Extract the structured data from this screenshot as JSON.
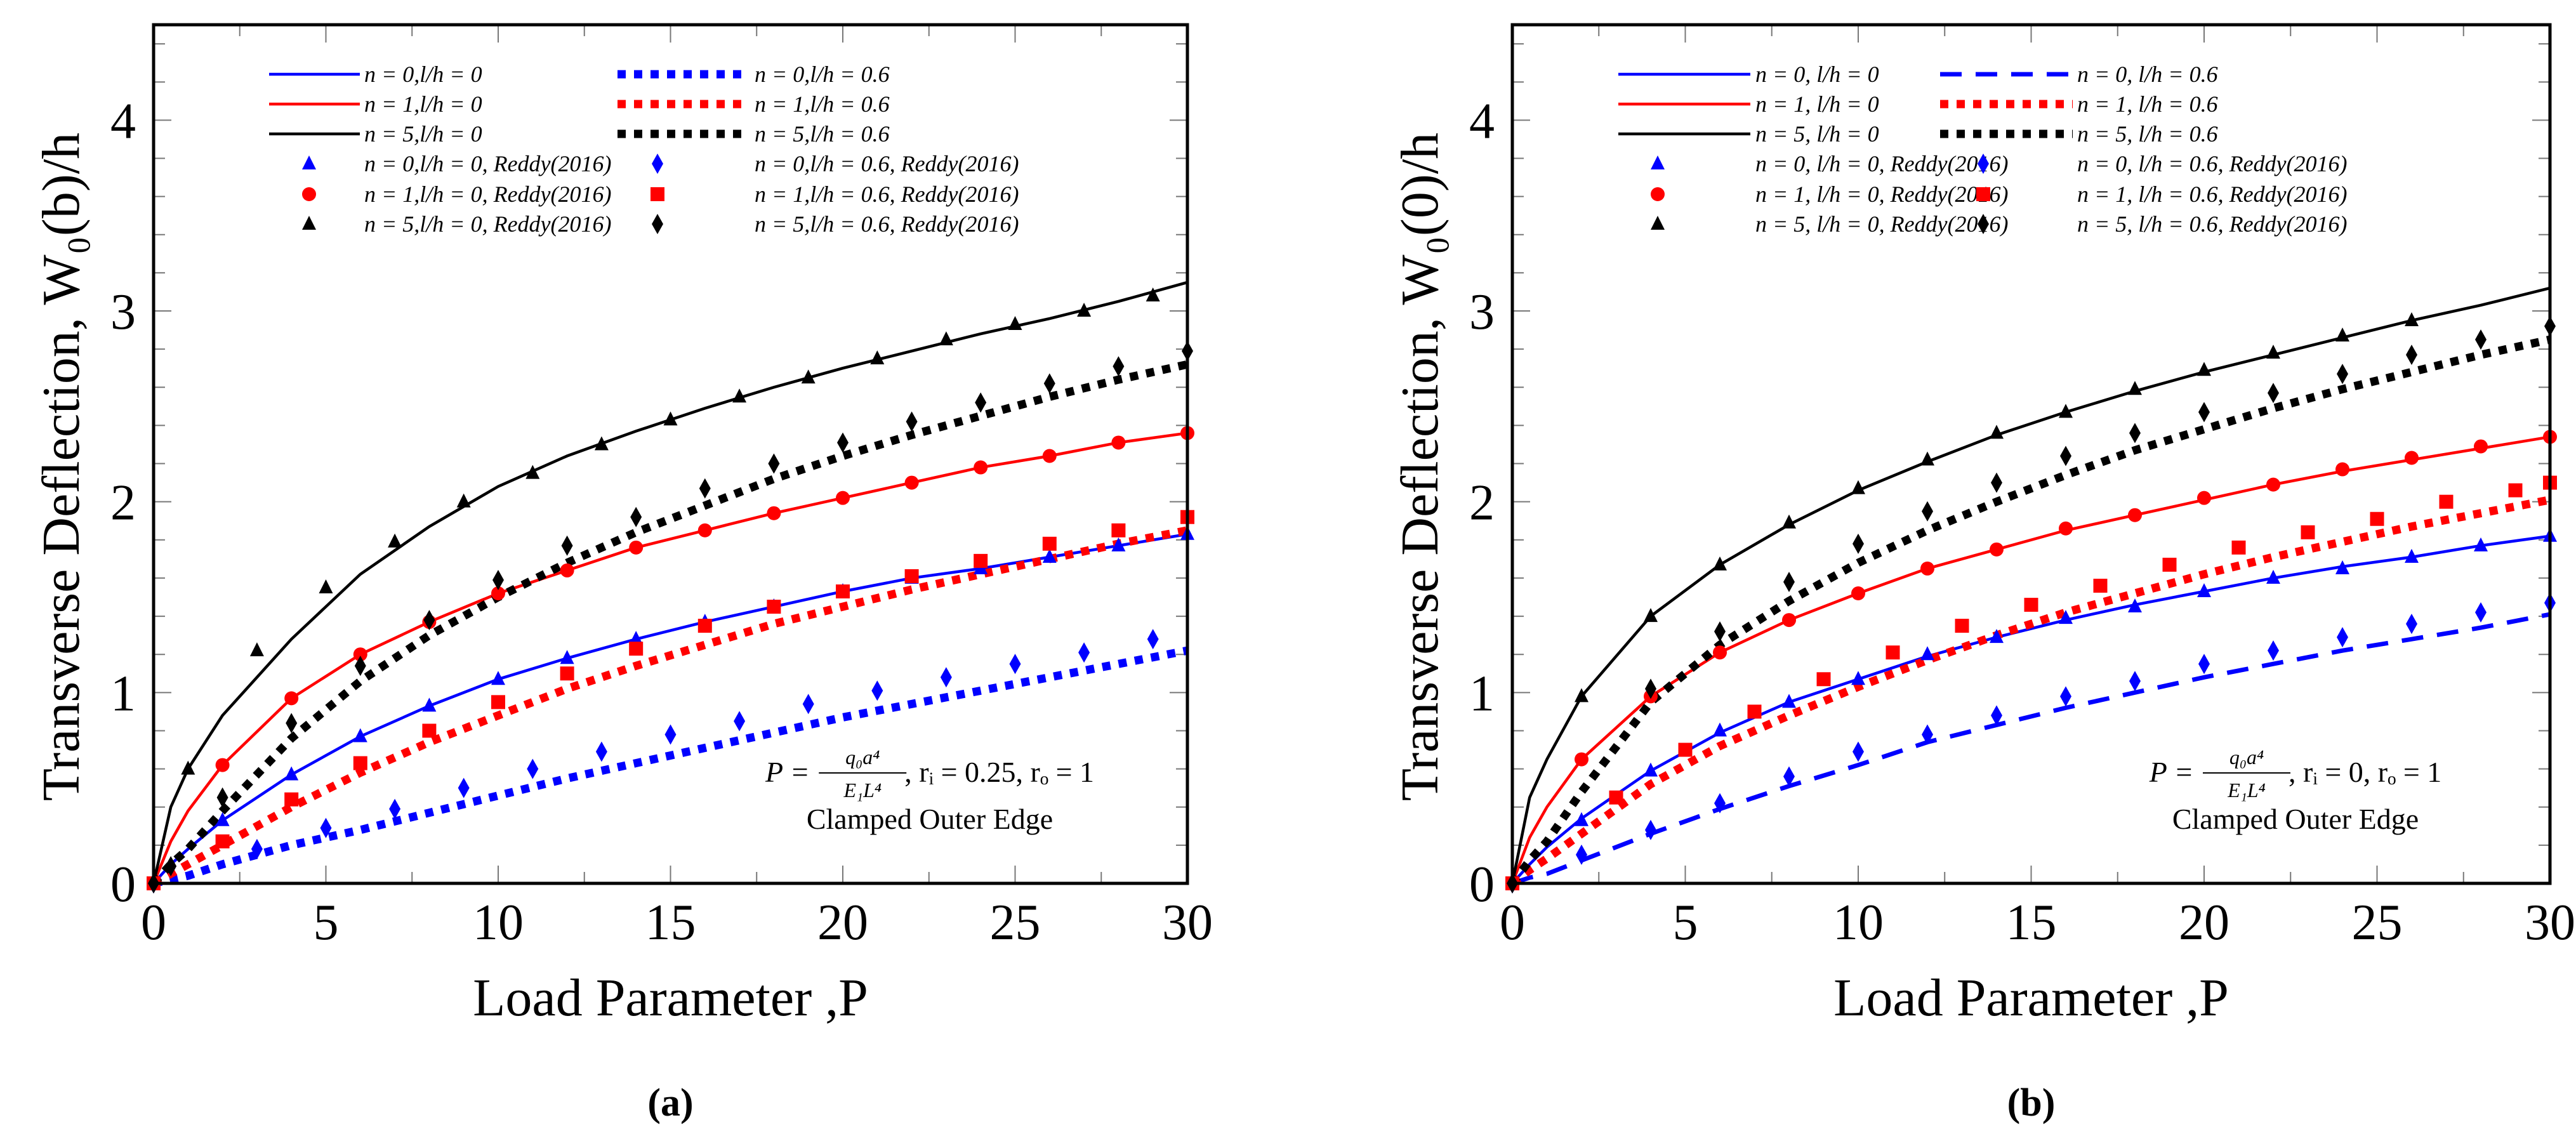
{
  "chart_data": [
    {
      "type": "line",
      "panel": "a",
      "caption": "(a)",
      "xlabel": "Load Parameter ,P",
      "ylabel": "Transverse Deflection, W₀(b)/h",
      "xlim": [
        0,
        30
      ],
      "ylim": [
        0,
        4.5
      ],
      "xticks": [
        0,
        5,
        10,
        15,
        20,
        25,
        30
      ],
      "yticks": [
        0,
        1,
        2,
        3,
        4
      ],
      "grid": false,
      "legend_placement": "top",
      "annotation": {
        "lhs": "P =",
        "numerator": "q₀a⁴",
        "denominator": "E₁L⁴",
        "rest": ", rᵢ = 0.25, rₒ = 1",
        "line2": "Clamped Outer Edge"
      },
      "line_x": [
        0,
        0.5,
        1,
        2,
        4,
        6,
        8,
        10,
        12,
        14,
        16,
        18,
        20,
        22,
        24,
        26,
        28,
        30
      ],
      "lines": [
        {
          "name": "n = 0,l/h = 0",
          "color": "#0000ff",
          "style": "solid",
          "y": [
            0,
            0.1,
            0.18,
            0.33,
            0.57,
            0.77,
            0.93,
            1.07,
            1.18,
            1.28,
            1.37,
            1.45,
            1.53,
            1.6,
            1.65,
            1.71,
            1.77,
            1.83
          ]
        },
        {
          "name": "n = 1,l/h = 0",
          "color": "#ff0000",
          "style": "solid",
          "y": [
            0,
            0.22,
            0.38,
            0.62,
            0.97,
            1.2,
            1.37,
            1.52,
            1.64,
            1.76,
            1.85,
            1.94,
            2.02,
            2.1,
            2.18,
            2.24,
            2.31,
            2.36
          ]
        },
        {
          "name": "n = 5,l/h = 0",
          "color": "#000000",
          "style": "solid",
          "y": [
            0,
            0.4,
            0.6,
            0.88,
            1.28,
            1.62,
            1.87,
            2.08,
            2.24,
            2.37,
            2.49,
            2.6,
            2.7,
            2.79,
            2.88,
            2.96,
            3.05,
            3.15
          ]
        },
        {
          "name": "n = 0,l/h = 0.6",
          "color": "#0000ff",
          "style": "dotted",
          "y": [
            0,
            0.02,
            0.04,
            0.1,
            0.2,
            0.28,
            0.37,
            0.46,
            0.55,
            0.63,
            0.71,
            0.79,
            0.87,
            0.94,
            1.01,
            1.08,
            1.15,
            1.22
          ]
        },
        {
          "name": "n = 1,l/h = 0.6",
          "color": "#ff0000",
          "style": "dotted",
          "y": [
            0,
            0.05,
            0.1,
            0.2,
            0.4,
            0.58,
            0.74,
            0.88,
            1.02,
            1.14,
            1.25,
            1.36,
            1.45,
            1.54,
            1.62,
            1.7,
            1.78,
            1.85
          ]
        },
        {
          "name": "n = 5,l/h = 0.6",
          "color": "#000000",
          "style": "dotted",
          "y": [
            0,
            0.1,
            0.18,
            0.38,
            0.76,
            1.06,
            1.3,
            1.5,
            1.68,
            1.84,
            1.98,
            2.12,
            2.24,
            2.35,
            2.45,
            2.55,
            2.64,
            2.72
          ]
        }
      ],
      "markers": [
        {
          "name": "n = 0,l/h = 0, Reddy(2016)",
          "color": "#0000ff",
          "shape": "triangle",
          "x": [
            0,
            2,
            4,
            6,
            8,
            10,
            12,
            14,
            16,
            18,
            20,
            22,
            24,
            26,
            28,
            30
          ],
          "y": [
            0,
            0.33,
            0.57,
            0.77,
            0.93,
            1.07,
            1.18,
            1.28,
            1.37,
            1.45,
            1.53,
            1.6,
            1.65,
            1.71,
            1.77,
            1.83
          ]
        },
        {
          "name": "n = 1,l/h = 0, Reddy(2016)",
          "color": "#ff0000",
          "shape": "circle",
          "x": [
            0,
            2,
            4,
            6,
            8,
            10,
            12,
            14,
            16,
            18,
            20,
            22,
            24,
            26,
            28,
            30
          ],
          "y": [
            0,
            0.62,
            0.97,
            1.2,
            1.37,
            1.52,
            1.64,
            1.76,
            1.85,
            1.94,
            2.02,
            2.1,
            2.18,
            2.24,
            2.31,
            2.36
          ]
        },
        {
          "name": "n = 5,l/h = 0, Reddy(2016)",
          "color": "#000000",
          "shape": "triangle",
          "x": [
            0,
            1,
            3,
            5,
            7,
            9,
            11,
            13,
            15,
            17,
            19,
            21,
            23,
            25,
            27,
            29
          ],
          "y": [
            0,
            0.6,
            1.22,
            1.55,
            1.79,
            2.0,
            2.15,
            2.3,
            2.43,
            2.55,
            2.65,
            2.75,
            2.85,
            2.93,
            3.0,
            3.08
          ]
        },
        {
          "name": "n = 0,l/h = 0.6, Reddy(2016)",
          "color": "#0000ff",
          "shape": "diamond",
          "x": [
            0,
            3,
            5,
            7,
            9,
            11,
            13,
            15,
            17,
            19,
            21,
            23,
            25,
            27,
            29
          ],
          "y": [
            0,
            0.18,
            0.29,
            0.39,
            0.5,
            0.6,
            0.69,
            0.78,
            0.85,
            0.94,
            1.01,
            1.08,
            1.15,
            1.21,
            1.28
          ]
        },
        {
          "name": "n = 1,l/h = 0.6, Reddy(2016)",
          "color": "#ff0000",
          "shape": "square",
          "x": [
            0,
            2,
            4,
            6,
            8,
            10,
            12,
            14,
            16,
            18,
            20,
            22,
            24,
            26,
            28,
            30
          ],
          "y": [
            0,
            0.22,
            0.44,
            0.63,
            0.8,
            0.95,
            1.1,
            1.23,
            1.35,
            1.45,
            1.53,
            1.61,
            1.69,
            1.78,
            1.85,
            1.92
          ]
        },
        {
          "name": "n = 5,l/h = 0.6, Reddy(2016)",
          "color": "#000000",
          "shape": "diamond",
          "x": [
            0,
            0.5,
            2,
            4,
            6,
            8,
            10,
            12,
            14,
            16,
            18,
            20,
            22,
            24,
            26,
            28,
            30
          ],
          "y": [
            0,
            0.09,
            0.45,
            0.84,
            1.14,
            1.38,
            1.59,
            1.77,
            1.92,
            2.07,
            2.2,
            2.31,
            2.42,
            2.52,
            2.62,
            2.71,
            2.79
          ]
        }
      ]
    },
    {
      "type": "line",
      "panel": "b",
      "caption": "(b)",
      "xlabel": "Load Parameter ,P",
      "ylabel": "Transverse Deflection, W₀(0)/h",
      "xlim": [
        0,
        30
      ],
      "ylim": [
        0,
        4.5
      ],
      "xticks": [
        0,
        5,
        10,
        15,
        20,
        25,
        30
      ],
      "yticks": [
        0,
        1,
        2,
        3,
        4
      ],
      "grid": false,
      "legend_placement": "top",
      "annotation": {
        "lhs": "P =",
        "numerator": "q₀a⁴",
        "denominator": "E₁L⁴",
        "rest": ", rᵢ = 0, rₒ = 1",
        "line2": "Clamped Outer Edge"
      },
      "line_x": [
        0,
        0.5,
        1,
        2,
        4,
        6,
        8,
        10,
        12,
        14,
        16,
        18,
        20,
        22,
        24,
        26,
        28,
        30
      ],
      "lines": [
        {
          "name": "n = 0, l/h = 0",
          "color": "#0000ff",
          "style": "solid",
          "y": [
            0,
            0.1,
            0.19,
            0.34,
            0.59,
            0.79,
            0.95,
            1.07,
            1.19,
            1.29,
            1.38,
            1.46,
            1.53,
            1.6,
            1.66,
            1.71,
            1.77,
            1.82
          ]
        },
        {
          "name": "n = 1, l/h = 0",
          "color": "#ff0000",
          "style": "solid",
          "y": [
            0,
            0.24,
            0.4,
            0.65,
            0.98,
            1.21,
            1.38,
            1.52,
            1.65,
            1.75,
            1.85,
            1.93,
            2.01,
            2.09,
            2.16,
            2.22,
            2.28,
            2.34
          ]
        },
        {
          "name": "n = 5, l/h = 0",
          "color": "#000000",
          "style": "solid",
          "y": [
            0,
            0.45,
            0.65,
            0.98,
            1.4,
            1.67,
            1.88,
            2.06,
            2.21,
            2.35,
            2.47,
            2.58,
            2.68,
            2.77,
            2.86,
            2.95,
            3.03,
            3.12
          ]
        },
        {
          "name": "n = 0, l/h = 0.6",
          "color": "#0000ff",
          "style": "dashed",
          "y": [
            0,
            0.03,
            0.05,
            0.12,
            0.26,
            0.39,
            0.51,
            0.62,
            0.74,
            0.83,
            0.92,
            1.0,
            1.08,
            1.15,
            1.22,
            1.28,
            1.34,
            1.41
          ]
        },
        {
          "name": "n = 1, l/h = 0.6",
          "color": "#ff0000",
          "style": "dotted",
          "y": [
            0,
            0.07,
            0.13,
            0.26,
            0.52,
            0.72,
            0.88,
            1.03,
            1.17,
            1.3,
            1.42,
            1.52,
            1.62,
            1.71,
            1.79,
            1.87,
            1.94,
            2.01
          ]
        },
        {
          "name": "n = 5, l/h = 0.6",
          "color": "#000000",
          "style": "dotted",
          "y": [
            0,
            0.12,
            0.22,
            0.48,
            0.95,
            1.25,
            1.48,
            1.68,
            1.85,
            2.0,
            2.14,
            2.27,
            2.38,
            2.49,
            2.59,
            2.68,
            2.77,
            2.85
          ]
        }
      ],
      "markers": [
        {
          "name": "n = 0, l/h = 0, Reddy(2016)",
          "color": "#0000ff",
          "shape": "triangle",
          "x": [
            0,
            2,
            4,
            6,
            8,
            10,
            12,
            14,
            16,
            18,
            20,
            22,
            24,
            26,
            28,
            30
          ],
          "y": [
            0,
            0.33,
            0.59,
            0.8,
            0.95,
            1.07,
            1.2,
            1.29,
            1.39,
            1.45,
            1.53,
            1.6,
            1.65,
            1.71,
            1.77,
            1.82
          ]
        },
        {
          "name": "n = 1, l/h = 0, Reddy(2016)",
          "color": "#ff0000",
          "shape": "circle",
          "x": [
            0,
            2,
            4,
            6,
            8,
            10,
            12,
            14,
            16,
            18,
            20,
            22,
            24,
            26,
            28,
            30
          ],
          "y": [
            0,
            0.65,
            0.98,
            1.21,
            1.38,
            1.52,
            1.65,
            1.75,
            1.86,
            1.93,
            2.02,
            2.09,
            2.17,
            2.23,
            2.29,
            2.34
          ]
        },
        {
          "name": "n = 5, l/h = 0, Reddy(2016)",
          "color": "#000000",
          "shape": "triangle",
          "x": [
            0,
            2,
            4,
            6,
            8,
            10,
            12,
            14,
            16,
            18,
            20,
            22,
            24,
            26
          ],
          "y": [
            0,
            0.98,
            1.4,
            1.67,
            1.89,
            2.07,
            2.22,
            2.36,
            2.47,
            2.59,
            2.69,
            2.78,
            2.87,
            2.95
          ]
        },
        {
          "name": "n = 0, l/h = 0.6, Reddy(2016)",
          "color": "#0000ff",
          "shape": "diamond",
          "x": [
            0,
            2,
            4,
            6,
            8,
            10,
            12,
            14,
            16,
            18,
            20,
            22,
            24,
            26,
            28,
            30
          ],
          "y": [
            0,
            0.15,
            0.28,
            0.42,
            0.56,
            0.69,
            0.78,
            0.88,
            0.98,
            1.06,
            1.15,
            1.22,
            1.29,
            1.36,
            1.42,
            1.47
          ]
        },
        {
          "name": "n = 1, l/h = 0.6, Reddy(2016)",
          "color": "#ff0000",
          "shape": "square",
          "x": [
            0,
            3,
            5,
            7,
            9,
            11,
            13,
            15,
            17,
            19,
            21,
            23,
            25,
            27,
            29,
            30
          ],
          "y": [
            0,
            0.45,
            0.7,
            0.9,
            1.07,
            1.21,
            1.35,
            1.46,
            1.56,
            1.67,
            1.76,
            1.84,
            1.91,
            2.0,
            2.06,
            2.1
          ]
        },
        {
          "name": "n = 5, l/h = 0.6, Reddy(2016)",
          "color": "#000000",
          "shape": "diamond",
          "x": [
            0,
            4,
            6,
            8,
            10,
            12,
            14,
            16,
            18,
            20,
            22,
            24,
            26,
            28,
            30
          ],
          "y": [
            0,
            1.02,
            1.32,
            1.58,
            1.78,
            1.95,
            2.1,
            2.24,
            2.36,
            2.47,
            2.57,
            2.67,
            2.77,
            2.85,
            2.92
          ]
        }
      ]
    }
  ]
}
